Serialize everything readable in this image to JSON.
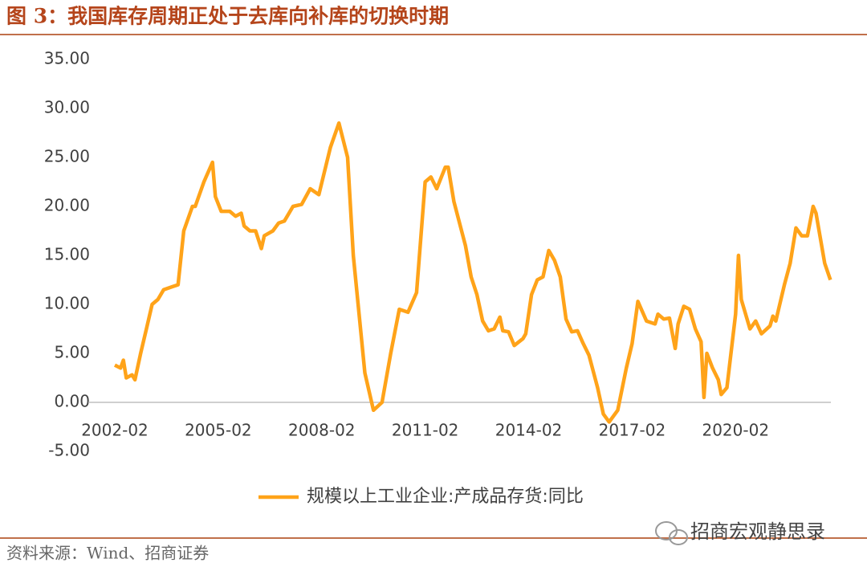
{
  "chart_data": {
    "type": "line",
    "title": "图 3：我国库存周期正处于去库向补库的切换时期",
    "source": "资料来源：Wind、招商证券",
    "watermark": "招商宏观静思录",
    "ylim": [
      -5,
      35
    ],
    "yticks": [
      {
        "value": 35,
        "label": "35.00"
      },
      {
        "value": 30,
        "label": "30.00"
      },
      {
        "value": 25,
        "label": "25.00"
      },
      {
        "value": 20,
        "label": "20.00"
      },
      {
        "value": 15,
        "label": "15.00"
      },
      {
        "value": 10,
        "label": "10.00"
      },
      {
        "value": 5,
        "label": "5.00"
      },
      {
        "value": 0,
        "label": "0.00"
      },
      {
        "value": -5,
        "label": "-5.00"
      }
    ],
    "xticks": [
      "2002-02",
      "2005-02",
      "2008-02",
      "2011-02",
      "2014-02",
      "2017-02",
      "2020-02"
    ],
    "legend": "bottom",
    "x": [
      "2002-02",
      "2002-04",
      "2002-05",
      "2002-06",
      "2002-08",
      "2002-09",
      "2002-11",
      "2003-01",
      "2003-03",
      "2003-05",
      "2003-07",
      "2003-10",
      "2003-12",
      "2004-02",
      "2004-05",
      "2004-06",
      "2004-09",
      "2004-12",
      "2005-01",
      "2005-03",
      "2005-06",
      "2005-08",
      "2005-10",
      "2005-11",
      "2006-01",
      "2006-03",
      "2006-05",
      "2006-06",
      "2006-09",
      "2006-11",
      "2007-01",
      "2007-04",
      "2007-07",
      "2007-10",
      "2008-01",
      "2008-05",
      "2008-08",
      "2008-11",
      "2009-01",
      "2009-03",
      "2009-05",
      "2009-08",
      "2009-11",
      "2010-02",
      "2010-05",
      "2010-08",
      "2010-11",
      "2011-02",
      "2011-04",
      "2011-06",
      "2011-09",
      "2011-10",
      "2011-12",
      "2012-04",
      "2012-06",
      "2012-08",
      "2012-10",
      "2012-12",
      "2013-02",
      "2013-04",
      "2013-05",
      "2013-07",
      "2013-09",
      "2013-12",
      "2014-01",
      "2014-03",
      "2014-05",
      "2014-07",
      "2014-09",
      "2014-11",
      "2015-01",
      "2015-03",
      "2015-05",
      "2015-07",
      "2015-09",
      "2015-11",
      "2016-02",
      "2016-04",
      "2016-06",
      "2016-09",
      "2016-12",
      "2017-02",
      "2017-04",
      "2017-07",
      "2017-10",
      "2017-11",
      "2018-01",
      "2018-03",
      "2018-05",
      "2018-06",
      "2018-08",
      "2018-10",
      "2018-12",
      "2019-02",
      "2019-03",
      "2019-04",
      "2019-06",
      "2019-08",
      "2019-09",
      "2019-11",
      "2020-02",
      "2020-03",
      "2020-04",
      "2020-07",
      "2020-09",
      "2020-11",
      "2021-02",
      "2021-03",
      "2021-04",
      "2021-07",
      "2021-09",
      "2021-11",
      "2022-01",
      "2022-03",
      "2022-05",
      "2022-06",
      "2022-09",
      "2022-11"
    ],
    "series": [
      {
        "name": "规模以上工业企业:产成品存货:同比",
        "color": "#FFA319",
        "values": [
          3.8,
          3.5,
          4.3,
          2.5,
          2.8,
          2.3,
          5,
          7.5,
          10,
          10.5,
          11.5,
          11.8,
          12,
          17.5,
          20,
          20,
          22.5,
          24.5,
          21,
          19.5,
          19.5,
          19,
          19.3,
          18,
          17.5,
          17.5,
          15.7,
          17,
          17.5,
          18.3,
          18.5,
          20,
          20.2,
          21.8,
          21.2,
          26,
          28.5,
          25,
          15,
          9,
          3,
          -0.8,
          0,
          5,
          9.5,
          9.2,
          11.2,
          22.5,
          23,
          21.8,
          24,
          24,
          20.5,
          16,
          12.8,
          11,
          8.3,
          7.3,
          7.5,
          8.7,
          7.3,
          7.2,
          5.8,
          6.5,
          7,
          11,
          12.5,
          12.8,
          15.5,
          14.5,
          12.8,
          8.5,
          7.2,
          7.3,
          6,
          4.8,
          1.5,
          -1.2,
          -2,
          -0.8,
          3.5,
          6,
          10.3,
          8.3,
          8,
          9,
          8.5,
          8.6,
          5.5,
          8,
          9.8,
          9.5,
          7.5,
          6.2,
          0.5,
          5,
          3.5,
          2.3,
          0.8,
          1.5,
          9,
          15,
          10.5,
          7.5,
          8.3,
          7,
          7.8,
          8.8,
          8.3,
          12,
          14.2,
          17.8,
          17,
          17,
          20,
          19.3,
          14.2,
          12.5
        ]
      }
    ]
  }
}
